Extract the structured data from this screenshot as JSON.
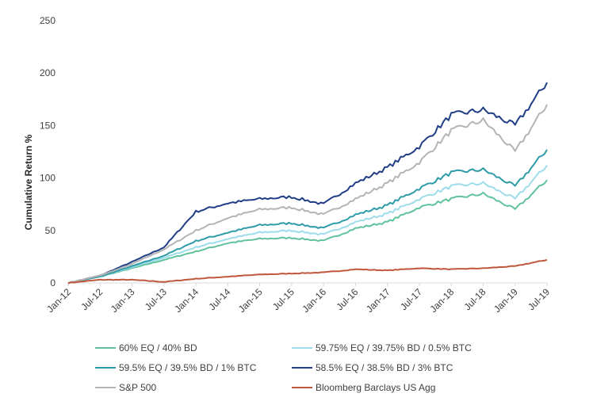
{
  "chart_data": {
    "type": "line",
    "title": "",
    "xlabel": "",
    "ylabel": "Cumulative Return %",
    "ylim": [
      0,
      250
    ],
    "yticks": [
      "0",
      "50",
      "100",
      "150",
      "200",
      "250"
    ],
    "grid": false,
    "legend_position": "bottom",
    "x": [
      "Jan-12",
      "Jul-12",
      "Jan-13",
      "Jul-13",
      "Jan-14",
      "Jul-14",
      "Jan-15",
      "Jul-15",
      "Jan-16",
      "Jul-16",
      "Jan-17",
      "Jul-17",
      "Jan-18",
      "Jul-18",
      "Jan-19",
      "Jul-19"
    ],
    "series": [
      {
        "name": "60% EQ / 40% BD",
        "color": "#5fc29a",
        "values": [
          0,
          6,
          14,
          22,
          30,
          38,
          42,
          43,
          40,
          52,
          58,
          72,
          80,
          85,
          70,
          98
        ]
      },
      {
        "name": "59.75% EQ / 39.75% BD / 0.5% BTC",
        "color": "#9ddcea",
        "values": [
          0,
          6,
          15,
          24,
          34,
          42,
          48,
          50,
          46,
          58,
          66,
          80,
          92,
          95,
          80,
          112
        ]
      },
      {
        "name": "59.5% EQ / 39.5% BD / 1% BTC",
        "color": "#2e9ba8",
        "values": [
          0,
          6,
          16,
          26,
          40,
          48,
          55,
          57,
          52,
          65,
          74,
          90,
          105,
          108,
          92,
          127
        ]
      },
      {
        "name": "58.5% EQ / 38.5% BD / 3% BTC",
        "color": "#1f3e85",
        "values": [
          0,
          7,
          20,
          34,
          68,
          76,
          80,
          82,
          75,
          95,
          110,
          130,
          160,
          165,
          150,
          191
        ]
      },
      {
        "name": "S&P 500",
        "color": "#b4b4b4",
        "values": [
          0,
          7,
          18,
          32,
          50,
          62,
          70,
          72,
          65,
          80,
          95,
          115,
          145,
          155,
          125,
          170
        ]
      },
      {
        "name": "Bloomberg Barclays US Agg",
        "color": "#c0573c",
        "values": [
          0,
          3,
          3,
          1,
          4,
          6,
          8,
          9,
          10,
          13,
          12,
          14,
          13,
          14,
          16,
          22
        ]
      }
    ]
  }
}
